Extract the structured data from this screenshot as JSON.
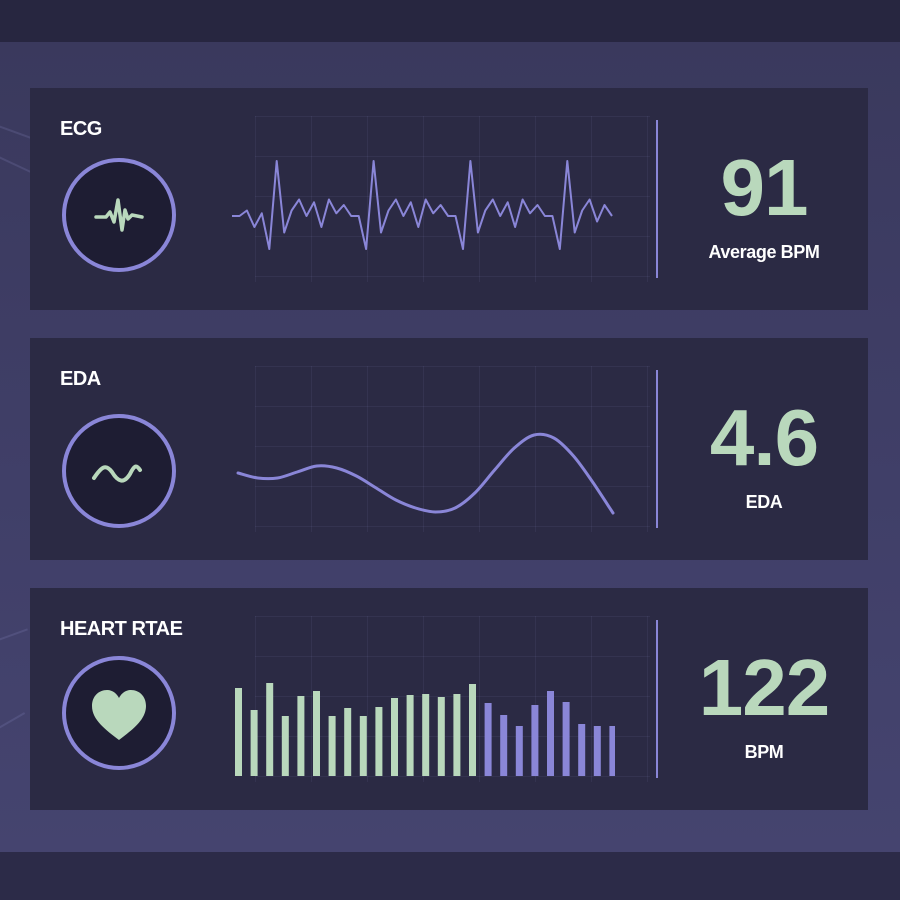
{
  "colors": {
    "accent": "#8a86d8",
    "value_green": "#b9d8bc",
    "card_bg": "#2b2a44",
    "bar_green": "#b9d8bc",
    "bar_purple": "#8a86d8"
  },
  "cards": [
    {
      "title": "ECG",
      "value": "91",
      "unit": "Average BPM",
      "icon": "pulse-icon"
    },
    {
      "title": "EDA",
      "value": "4.6",
      "unit": "EDA",
      "icon": "sine-wave-icon"
    },
    {
      "title": "HEART RTAE",
      "value": "122",
      "unit": "BPM",
      "icon": "heart-icon"
    }
  ],
  "chart_data": [
    {
      "type": "line",
      "series": [
        {
          "values": [
            0,
            0,
            0.1,
            -0.2,
            0.05,
            -0.6,
            1.0,
            -0.3,
            0.1,
            0.3,
            0.0,
            0.25,
            -0.2,
            0.3,
            0.05,
            0.2,
            0.0,
            0.0,
            -0.6,
            1.0,
            -0.3,
            0.1,
            0.3,
            0.0,
            0.25,
            -0.2,
            0.3,
            0.05,
            0.2,
            0.0,
            0.0,
            -0.6,
            1.0,
            -0.3,
            0.1,
            0.3,
            0.0,
            0.25,
            -0.2,
            0.3,
            0.05,
            0.2,
            0.0,
            0.0,
            -0.6,
            1.0,
            -0.3,
            0.1,
            0.3,
            -0.1,
            0.2,
            0.0
          ]
        }
      ]
    },
    {
      "type": "line",
      "series": [
        {
          "values": [
            0.45,
            0.4,
            0.4,
            0.46,
            0.52,
            0.5,
            0.42,
            0.3,
            0.18,
            0.1,
            0.06,
            0.1,
            0.25,
            0.48,
            0.7,
            0.83,
            0.8,
            0.62,
            0.35,
            0.05
          ]
        }
      ]
    },
    {
      "type": "bar",
      "values": [
        88,
        66,
        93,
        60,
        80,
        85,
        60,
        68,
        60,
        69,
        78,
        81,
        82,
        79,
        82,
        92,
        73,
        61,
        50,
        71,
        85,
        74,
        52,
        50,
        50
      ],
      "colors": [
        "green",
        "green",
        "green",
        "green",
        "green",
        "green",
        "green",
        "green",
        "green",
        "green",
        "green",
        "green",
        "green",
        "green",
        "green",
        "green",
        "purple",
        "purple",
        "purple",
        "purple",
        "purple",
        "purple",
        "purple",
        "purple",
        "purple"
      ],
      "ylim": [
        0,
        100
      ]
    }
  ]
}
